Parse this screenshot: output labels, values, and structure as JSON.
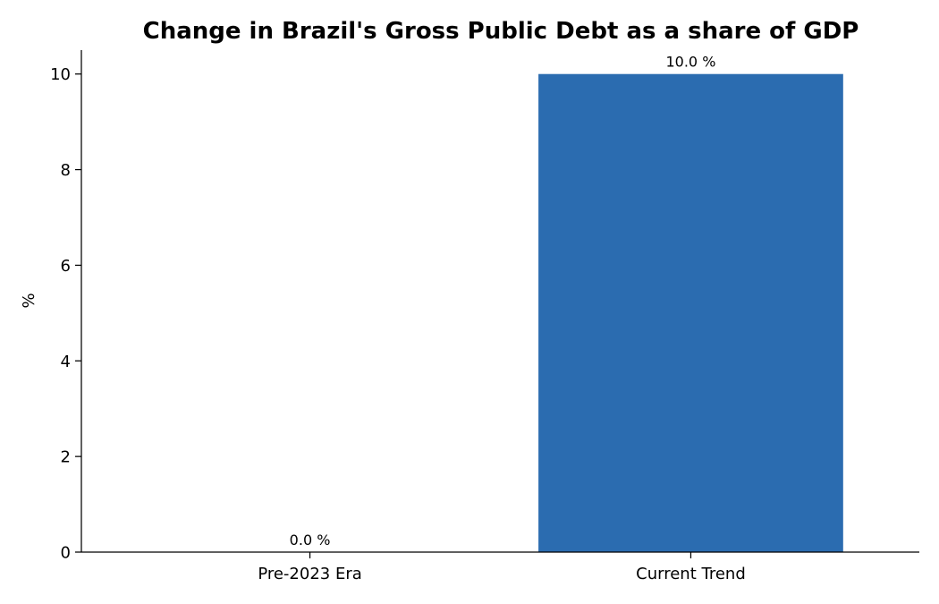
{
  "chart_data": {
    "type": "bar",
    "title": "Change in Brazil's Gross Public Debt as a share of GDP",
    "xlabel": "",
    "ylabel": "%",
    "categories": [
      "Pre-2023 Era",
      "Current Trend"
    ],
    "values": [
      0.0,
      10.0
    ],
    "data_labels": [
      "0.0 %",
      "10.0 %"
    ],
    "ylim": [
      0,
      10.5
    ],
    "yticks": [
      0,
      2,
      4,
      6,
      8,
      10
    ],
    "ytick_labels": [
      "0",
      "2",
      "4",
      "6",
      "8",
      "10"
    ],
    "bar_color": "#2b6cb0",
    "grid": false,
    "legend": "none"
  }
}
